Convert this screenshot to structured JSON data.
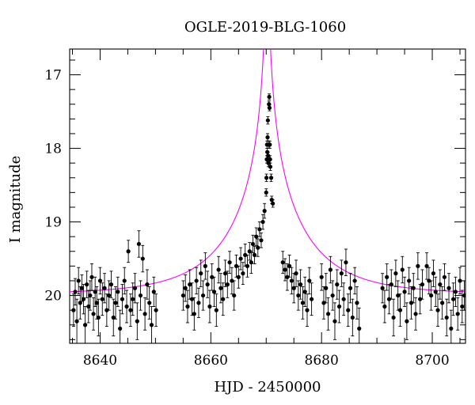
{
  "chart_data": {
    "type": "scatter",
    "title": "OGLE-2019-BLG-1060",
    "xlabel": "HJD - 2450000",
    "ylabel": "I magnitude",
    "xlim": [
      8634.5,
      8706
    ],
    "ylim": [
      20.65,
      16.65
    ],
    "y_inverted": true,
    "grid": false,
    "x_ticks": [
      8640,
      8660,
      8680,
      8700
    ],
    "x_tick_labels": [
      "8640",
      "8660",
      "8680",
      "8700"
    ],
    "y_ticks": [
      17,
      18,
      19,
      20
    ],
    "y_tick_labels": [
      "17",
      "18",
      "19",
      "20"
    ],
    "model": {
      "color": "#ff00ff",
      "t0": 8670.15,
      "u0": 0.01,
      "tE": 14,
      "base_mag": 19.98,
      "blend_fraction": 1.0
    },
    "series": [
      {
        "color": "#000000",
        "marker": "circle",
        "points": [
          [
            8635.2,
            20.2,
            0.22
          ],
          [
            8635.5,
            19.95,
            0.18
          ],
          [
            8635.8,
            20.35,
            0.3
          ],
          [
            8636.1,
            19.8,
            0.18
          ],
          [
            8636.4,
            20.1,
            0.22
          ],
          [
            8636.7,
            19.9,
            0.18
          ],
          [
            8637.0,
            20.05,
            0.2
          ],
          [
            8637.3,
            20.4,
            0.25
          ],
          [
            8637.6,
            19.85,
            0.18
          ],
          [
            8637.9,
            20.15,
            0.22
          ],
          [
            8638.2,
            20.0,
            0.2
          ],
          [
            8638.5,
            19.75,
            0.18
          ],
          [
            8638.8,
            20.25,
            0.22
          ],
          [
            8639.1,
            19.95,
            0.2
          ],
          [
            8639.4,
            20.1,
            0.22
          ],
          [
            8639.7,
            20.3,
            0.25
          ],
          [
            8640.0,
            19.8,
            0.18
          ],
          [
            8640.4,
            20.05,
            0.22
          ],
          [
            8640.8,
            19.9,
            0.2
          ],
          [
            8641.2,
            20.2,
            0.22
          ],
          [
            8641.6,
            20.0,
            0.2
          ],
          [
            8642.0,
            19.85,
            0.18
          ],
          [
            8642.4,
            20.3,
            0.25
          ],
          [
            8642.8,
            20.1,
            0.22
          ],
          [
            8643.2,
            19.95,
            0.2
          ],
          [
            8643.6,
            20.45,
            0.25
          ],
          [
            8644.0,
            20.05,
            0.2
          ],
          [
            8644.4,
            19.8,
            0.18
          ],
          [
            8644.8,
            20.15,
            0.22
          ],
          [
            8645.1,
            19.4,
            0.15
          ],
          [
            8645.5,
            20.2,
            0.22
          ],
          [
            8645.9,
            20.05,
            0.22
          ],
          [
            8646.3,
            19.9,
            0.2
          ],
          [
            8646.7,
            20.35,
            0.25
          ],
          [
            8647.0,
            19.3,
            0.18
          ],
          [
            8647.3,
            20.0,
            0.2
          ],
          [
            8647.7,
            19.5,
            0.18
          ],
          [
            8648.1,
            20.25,
            0.22
          ],
          [
            8648.5,
            19.85,
            0.2
          ],
          [
            8648.9,
            20.1,
            0.22
          ],
          [
            8649.3,
            20.4,
            0.25
          ],
          [
            8649.7,
            19.95,
            0.2
          ],
          [
            8650.1,
            20.2,
            0.22
          ],
          [
            8655.0,
            20.0,
            0.2
          ],
          [
            8655.4,
            19.9,
            0.18
          ],
          [
            8655.8,
            20.15,
            0.22
          ],
          [
            8656.2,
            19.85,
            0.2
          ],
          [
            8656.6,
            20.05,
            0.22
          ],
          [
            8657.0,
            20.25,
            0.22
          ],
          [
            8657.4,
            19.8,
            0.18
          ],
          [
            8657.8,
            20.1,
            0.2
          ],
          [
            8658.2,
            19.7,
            0.18
          ],
          [
            8658.6,
            20.0,
            0.2
          ],
          [
            8659.0,
            19.6,
            0.18
          ],
          [
            8659.4,
            19.85,
            0.18
          ],
          [
            8659.8,
            20.15,
            0.22
          ],
          [
            8660.2,
            19.75,
            0.18
          ],
          [
            8660.6,
            19.95,
            0.2
          ],
          [
            8661.0,
            20.2,
            0.22
          ],
          [
            8661.4,
            19.65,
            0.18
          ],
          [
            8661.8,
            19.9,
            0.2
          ],
          [
            8662.2,
            20.05,
            0.22
          ],
          [
            8662.6,
            19.7,
            0.18
          ],
          [
            8663.0,
            19.85,
            0.18
          ],
          [
            8663.4,
            19.55,
            0.15
          ],
          [
            8663.8,
            19.8,
            0.18
          ],
          [
            8664.2,
            20.0,
            0.2
          ],
          [
            8664.6,
            19.6,
            0.15
          ],
          [
            8665.0,
            19.75,
            0.15
          ],
          [
            8665.4,
            19.5,
            0.15
          ],
          [
            8665.8,
            19.7,
            0.15
          ],
          [
            8666.2,
            19.45,
            0.15
          ],
          [
            8666.6,
            19.6,
            0.15
          ],
          [
            8667.0,
            19.4,
            0.12
          ],
          [
            8667.3,
            19.55,
            0.15
          ],
          [
            8667.6,
            19.3,
            0.12
          ],
          [
            8667.9,
            19.45,
            0.12
          ],
          [
            8668.2,
            19.2,
            0.12
          ],
          [
            8668.5,
            19.35,
            0.12
          ],
          [
            8668.8,
            19.1,
            0.1
          ],
          [
            8669.1,
            19.25,
            0.1
          ],
          [
            8669.4,
            19.0,
            0.1
          ],
          [
            8669.7,
            18.85,
            0.1
          ],
          [
            8670.0,
            18.6,
            0.05
          ],
          [
            8670.05,
            18.4,
            0.05
          ],
          [
            8670.1,
            18.15,
            0.05
          ],
          [
            8670.15,
            17.95,
            0.05
          ],
          [
            8670.2,
            18.05,
            0.05
          ],
          [
            8670.25,
            17.85,
            0.05
          ],
          [
            8670.3,
            17.62,
            0.05
          ],
          [
            8670.35,
            18.1,
            0.05
          ],
          [
            8670.4,
            18.2,
            0.05
          ],
          [
            8670.45,
            17.95,
            0.05
          ],
          [
            8670.5,
            17.4,
            0.04
          ],
          [
            8670.55,
            17.3,
            0.04
          ],
          [
            8670.6,
            17.45,
            0.04
          ],
          [
            8670.65,
            17.95,
            0.05
          ],
          [
            8670.7,
            18.15,
            0.05
          ],
          [
            8670.75,
            18.25,
            0.05
          ],
          [
            8670.9,
            18.4,
            0.05
          ],
          [
            8671.0,
            18.7,
            0.05
          ],
          [
            8671.2,
            18.75,
            0.05
          ],
          [
            8673.0,
            19.55,
            0.15
          ],
          [
            8673.4,
            19.65,
            0.15
          ],
          [
            8673.8,
            19.75,
            0.18
          ],
          [
            8674.2,
            19.6,
            0.15
          ],
          [
            8674.6,
            19.8,
            0.18
          ],
          [
            8675.0,
            19.9,
            0.2
          ],
          [
            8675.4,
            19.7,
            0.18
          ],
          [
            8675.8,
            20.0,
            0.2
          ],
          [
            8676.2,
            19.85,
            0.2
          ],
          [
            8676.6,
            20.1,
            0.22
          ],
          [
            8677.0,
            19.95,
            0.2
          ],
          [
            8677.4,
            20.2,
            0.22
          ],
          [
            8677.8,
            19.8,
            0.18
          ],
          [
            8678.2,
            20.05,
            0.22
          ],
          [
            8680.0,
            19.75,
            0.18
          ],
          [
            8680.4,
            20.1,
            0.22
          ],
          [
            8680.8,
            19.9,
            0.2
          ],
          [
            8681.2,
            20.25,
            0.22
          ],
          [
            8681.6,
            19.65,
            0.18
          ],
          [
            8682.0,
            20.0,
            0.2
          ],
          [
            8682.4,
            20.35,
            0.25
          ],
          [
            8682.8,
            19.85,
            0.2
          ],
          [
            8683.2,
            20.15,
            0.22
          ],
          [
            8683.6,
            19.7,
            0.18
          ],
          [
            8684.0,
            20.05,
            0.22
          ],
          [
            8684.4,
            19.55,
            0.18
          ],
          [
            8684.8,
            20.2,
            0.22
          ],
          [
            8685.2,
            19.9,
            0.2
          ],
          [
            8685.6,
            20.3,
            0.25
          ],
          [
            8686.0,
            19.8,
            0.18
          ],
          [
            8686.4,
            20.1,
            0.22
          ],
          [
            8686.8,
            20.45,
            0.28
          ],
          [
            8691.0,
            19.9,
            0.2
          ],
          [
            8691.4,
            20.15,
            0.22
          ],
          [
            8691.8,
            19.75,
            0.18
          ],
          [
            8692.2,
            20.05,
            0.2
          ],
          [
            8692.6,
            19.85,
            0.2
          ],
          [
            8693.0,
            20.3,
            0.25
          ],
          [
            8693.4,
            19.7,
            0.18
          ],
          [
            8693.8,
            20.0,
            0.2
          ],
          [
            8694.2,
            20.2,
            0.22
          ],
          [
            8694.6,
            19.65,
            0.18
          ],
          [
            8695.0,
            19.95,
            0.2
          ],
          [
            8695.4,
            20.35,
            0.25
          ],
          [
            8695.8,
            19.8,
            0.18
          ],
          [
            8696.2,
            20.1,
            0.22
          ],
          [
            8696.6,
            19.9,
            0.2
          ],
          [
            8697.0,
            20.25,
            0.22
          ],
          [
            8697.4,
            19.6,
            0.18
          ],
          [
            8697.8,
            20.05,
            0.2
          ],
          [
            8698.2,
            19.85,
            0.2
          ],
          [
            8699.0,
            19.6,
            0.18
          ],
          [
            8699.4,
            19.8,
            0.18
          ],
          [
            8699.8,
            20.0,
            0.2
          ],
          [
            8700.2,
            19.7,
            0.18
          ],
          [
            8700.6,
            19.95,
            0.2
          ],
          [
            8701.0,
            20.2,
            0.22
          ],
          [
            8701.4,
            19.85,
            0.2
          ],
          [
            8701.8,
            20.1,
            0.22
          ],
          [
            8702.2,
            19.75,
            0.18
          ],
          [
            8702.6,
            20.3,
            0.25
          ],
          [
            8703.0,
            19.9,
            0.2
          ],
          [
            8703.4,
            20.45,
            0.25
          ],
          [
            8703.8,
            20.05,
            0.22
          ],
          [
            8704.2,
            19.95,
            0.2
          ],
          [
            8704.6,
            20.25,
            0.22
          ],
          [
            8705.0,
            19.8,
            0.18
          ],
          [
            8705.4,
            20.15,
            0.22
          ],
          [
            8705.8,
            20.0,
            0.2
          ]
        ]
      }
    ]
  }
}
